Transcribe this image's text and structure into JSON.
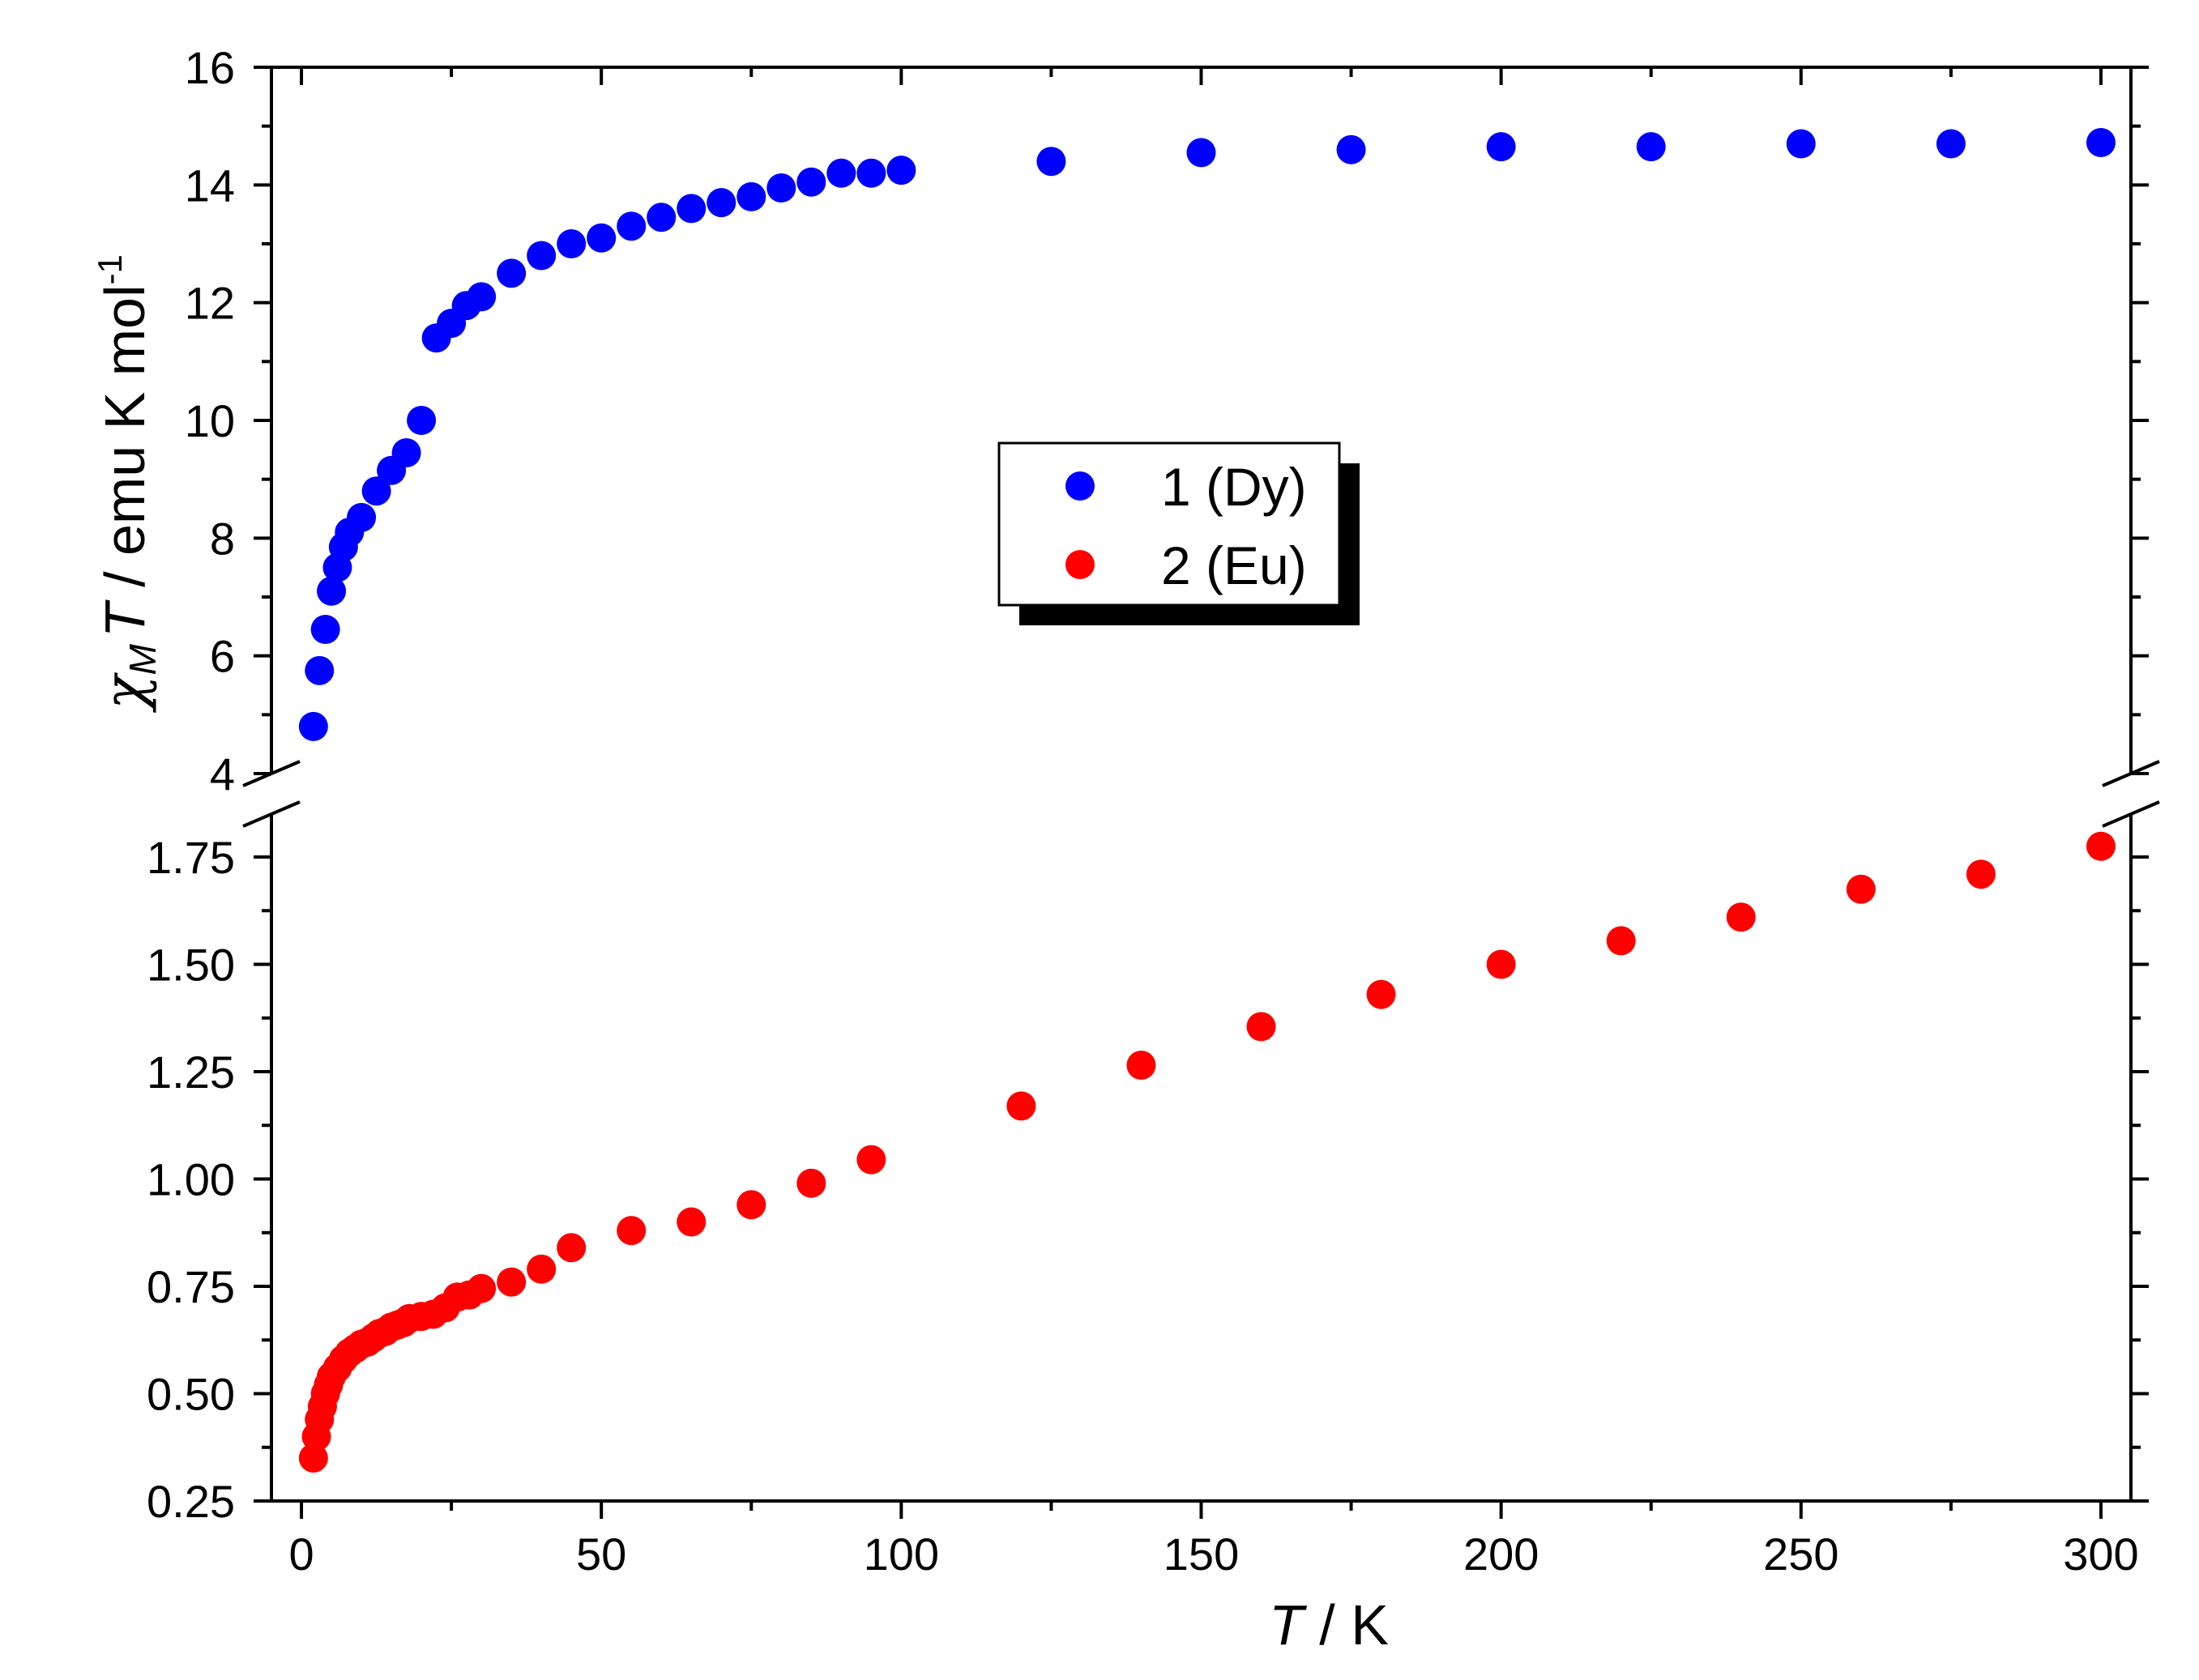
{
  "chart_data": {
    "type": "scatter",
    "x_axis": {
      "label_italic": "T",
      "label_rest": " / K",
      "range": [
        -5,
        305
      ],
      "ticks": [
        0,
        50,
        100,
        150,
        200,
        250,
        300
      ]
    },
    "y_axis": {
      "label_symbol": "χ",
      "label_subscript": "M",
      "label_italic": "T",
      "label_rest": " / emu K mol",
      "label_superscript": "-1",
      "upper_range": [
        4,
        16
      ],
      "upper_ticks": [
        4,
        6,
        8,
        10,
        12,
        14,
        16
      ],
      "lower_range": [
        0.25,
        1.85
      ],
      "lower_ticks": [
        "0.25",
        "0.50",
        "0.75",
        "1.00",
        "1.25",
        "1.50",
        "1.75"
      ],
      "broken": true
    },
    "legend": {
      "placement": "center"
    },
    "series": [
      {
        "name": "1 (Dy)",
        "color": "#0000ff",
        "segment": "upper",
        "x": [
          2,
          3,
          4,
          5,
          6,
          7,
          8,
          10,
          12.5,
          15,
          17.5,
          20,
          22.5,
          25,
          27.5,
          30,
          35,
          40,
          45,
          50,
          55,
          60,
          65,
          70,
          75,
          80,
          85,
          90,
          95,
          100,
          125,
          150,
          175,
          200,
          225,
          250,
          275,
          300
        ],
        "y": [
          4.8,
          5.75,
          6.45,
          7.1,
          7.5,
          7.85,
          8.1,
          8.35,
          8.8,
          9.15,
          9.45,
          10.0,
          11.4,
          11.65,
          11.95,
          12.1,
          12.5,
          12.8,
          13.0,
          13.1,
          13.3,
          13.45,
          13.6,
          13.7,
          13.8,
          13.95,
          14.05,
          14.2,
          14.2,
          14.25,
          14.4,
          14.55,
          14.6,
          14.65,
          14.65,
          14.7,
          14.7,
          14.72
        ]
      },
      {
        "name": "2 (Eu)",
        "color": "#ff0000",
        "segment": "lower",
        "x": [
          2,
          2.5,
          3,
          3.5,
          4,
          4.5,
          5,
          6,
          7,
          8,
          9,
          10,
          11,
          12,
          13,
          14,
          15,
          16,
          17,
          18,
          20,
          22,
          24,
          26,
          28,
          30,
          35,
          40,
          45,
          55,
          65,
          75,
          85,
          95,
          120,
          140,
          160,
          180,
          200,
          220,
          240,
          260,
          280,
          300
        ],
        "y": [
          0.35,
          0.4,
          0.44,
          0.47,
          0.5,
          0.52,
          0.54,
          0.56,
          0.58,
          0.595,
          0.605,
          0.615,
          0.62,
          0.63,
          0.64,
          0.645,
          0.655,
          0.66,
          0.665,
          0.675,
          0.68,
          0.685,
          0.7,
          0.725,
          0.73,
          0.745,
          0.76,
          0.79,
          0.84,
          0.88,
          0.9,
          0.94,
          0.99,
          1.045,
          1.17,
          1.265,
          1.355,
          1.43,
          1.5,
          1.555,
          1.61,
          1.675,
          1.71,
          1.775
        ]
      }
    ]
  }
}
